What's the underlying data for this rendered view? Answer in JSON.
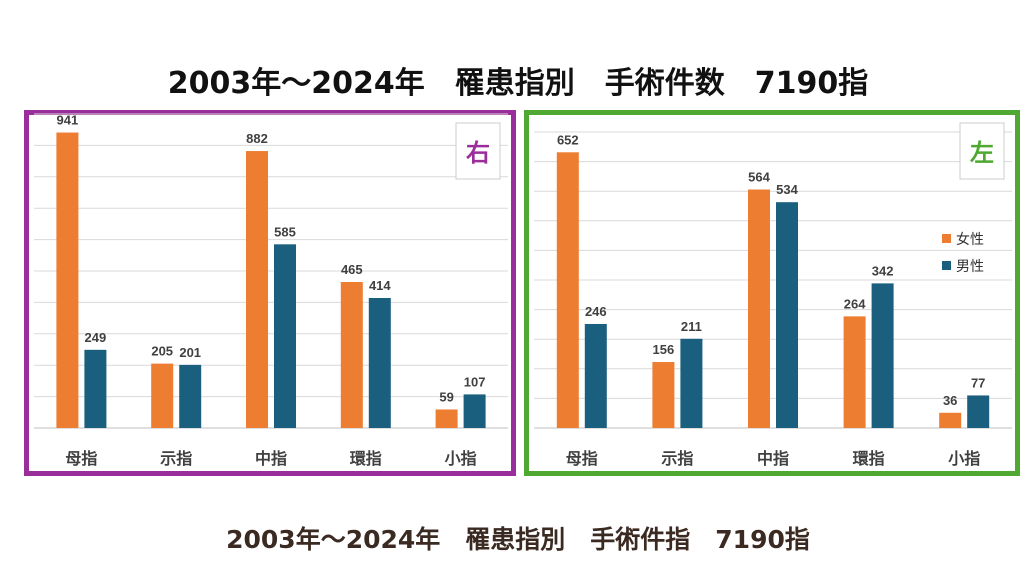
{
  "title": "2003年～2024年　罹患指別　手術件数　7190指",
  "caption": "2003年～2024年　罹患指別　手術件指　7190指",
  "colors": {
    "female": "#ED7D31",
    "male": "#1B5F7E",
    "right_border": "#9A2E9A",
    "left_border": "#4FA832"
  },
  "chart_data": [
    {
      "type": "bar",
      "side_label": "右",
      "categories": [
        "母指",
        "示指",
        "中指",
        "環指",
        "小指"
      ],
      "series": [
        {
          "name": "女性",
          "values": [
            941,
            205,
            882,
            465,
            59
          ]
        },
        {
          "name": "男性",
          "values": [
            249,
            201,
            585,
            414,
            107
          ]
        }
      ],
      "ylim": [
        0,
        1000
      ],
      "grid": true,
      "legend": "none"
    },
    {
      "type": "bar",
      "side_label": "左",
      "categories": [
        "母指",
        "示指",
        "中指",
        "環指",
        "小指"
      ],
      "series": [
        {
          "name": "女性",
          "values": [
            652,
            156,
            564,
            264,
            36
          ]
        },
        {
          "name": "男性",
          "values": [
            246,
            211,
            534,
            342,
            77
          ]
        }
      ],
      "ylim": [
        0,
        700
      ],
      "grid": true,
      "legend": "right"
    }
  ]
}
